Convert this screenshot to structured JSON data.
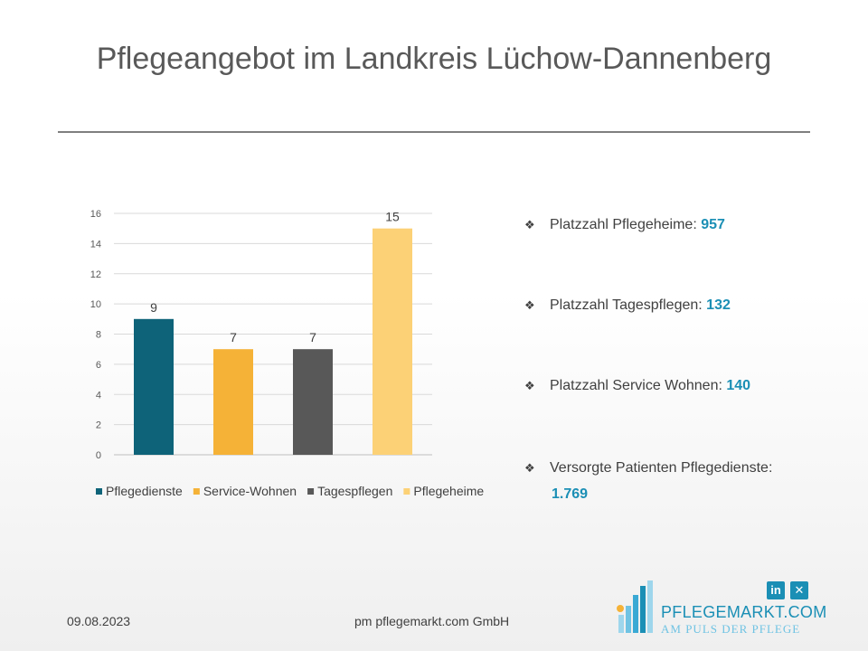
{
  "slide": {
    "title": "Pflegeangebot im Landkreis Lüchow-Dannenberg"
  },
  "chart_data": {
    "type": "bar",
    "categories": [
      "Pflegedienste",
      "Service-Wohnen",
      "Tagespflegen",
      "Pflegeheime"
    ],
    "values": [
      9,
      7,
      7,
      15
    ],
    "colors": [
      "#0e6379",
      "#f5b237",
      "#585858",
      "#fcd176"
    ],
    "ylim": [
      0,
      16
    ],
    "yticks": [
      0,
      2,
      4,
      6,
      8,
      10,
      12,
      14,
      16
    ],
    "data_labels": [
      "9",
      "7",
      "7",
      "15"
    ],
    "grid": true,
    "legend": "bottom"
  },
  "bullets": [
    {
      "symbol": "❖",
      "label": "Platzzahl Pflegeheime:",
      "value": "957"
    },
    {
      "symbol": "❖",
      "label": "Platzzahl Tagespflegen:",
      "value": "132"
    },
    {
      "symbol": "❖",
      "label": "Platzzahl Service Wohnen:",
      "value": "140"
    },
    {
      "symbol": "❖",
      "label": "Versorgte Patienten Pflegedienste:",
      "value": "1.769"
    }
  ],
  "footer": {
    "date": "09.08.2023",
    "company": "pm pflegemarkt.com GmbH"
  },
  "brand": {
    "name": "PFLEGEMARKT.COM",
    "tagline": "AM PULS DER PFLEGE",
    "social_icons": [
      {
        "icon": "linkedin-icon",
        "glyph": "in"
      },
      {
        "icon": "xing-icon",
        "glyph": "✕"
      }
    ],
    "accent": "#1b8fb5",
    "logo_dot": "#f5b237"
  }
}
